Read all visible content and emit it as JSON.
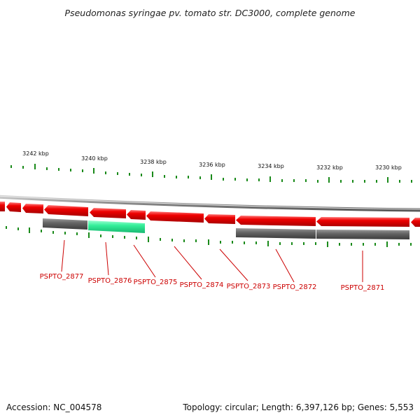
{
  "title": "Pseudomonas syringae pv. tomato str. DC3000, complete genome",
  "footer": {
    "accession": "Accession: NC_004578",
    "summary": "Topology: circular; Length: 6,397,126 bp; Genes: 5,553"
  },
  "colors": {
    "gene_forward": "#ee0000",
    "gene_highlight": "#33ee99",
    "gene_other": "#666666",
    "tick": "#1a8a1a",
    "backbone": "#888888",
    "label": "#cc0000"
  },
  "scale": {
    "labels": [
      "3242 kbp",
      "3240 kbp",
      "3238 kbp",
      "3236 kbp",
      "3234 kbp",
      "3232 kbp",
      "3230 kbp"
    ]
  },
  "genes": [
    {
      "id": "PSPTO_2877",
      "label": "PSPTO_2877"
    },
    {
      "id": "PSPTO_2876",
      "label": "PSPTO_2876"
    },
    {
      "id": "PSPTO_2875",
      "label": "PSPTO_2875"
    },
    {
      "id": "PSPTO_2874",
      "label": "PSPTO_2874"
    },
    {
      "id": "PSPTO_2873",
      "label": "PSPTO_2873"
    },
    {
      "id": "PSPTO_2872",
      "label": "PSPTO_2872"
    },
    {
      "id": "PSPTO_2871",
      "label": "PSPTO_2871"
    }
  ]
}
